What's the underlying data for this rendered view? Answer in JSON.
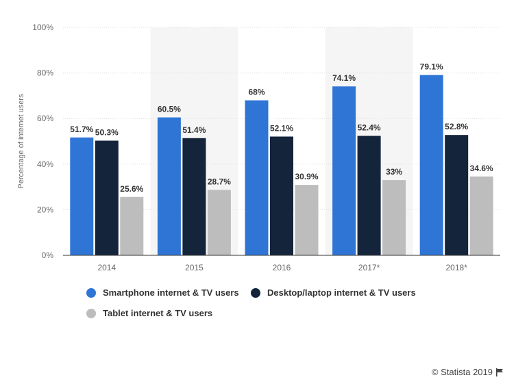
{
  "chart_data": {
    "type": "bar",
    "categories": [
      "2014",
      "2015",
      "2016",
      "2017*",
      "2018*"
    ],
    "highlighted_categories": [
      "2015",
      "2017*"
    ],
    "series": [
      {
        "name": "Smartphone internet & TV users",
        "color": "#2f75d6",
        "values": [
          51.7,
          60.5,
          68,
          74.1,
          79.1
        ],
        "labels": [
          "51.7%",
          "60.5%",
          "68%",
          "74.1%",
          "79.1%"
        ]
      },
      {
        "name": "Desktop/laptop internet & TV users",
        "color": "#14243b",
        "values": [
          50.3,
          51.4,
          52.1,
          52.4,
          52.8
        ],
        "labels": [
          "50.3%",
          "51.4%",
          "52.1%",
          "52.4%",
          "52.8%"
        ]
      },
      {
        "name": "Tablet internet & TV users",
        "color": "#bdbdbd",
        "values": [
          25.6,
          28.7,
          30.9,
          33,
          34.6
        ],
        "labels": [
          "25.6%",
          "28.7%",
          "30.9%",
          "33%",
          "34.6%"
        ]
      }
    ],
    "ylabel": "Percentage of internet users",
    "ylim": [
      0,
      100
    ],
    "yticks": [
      "0%",
      "20%",
      "40%",
      "60%",
      "80%",
      "100%"
    ],
    "grid": true,
    "legend_position": "bottom-left"
  },
  "credit": {
    "text": "© Statista 2019"
  }
}
